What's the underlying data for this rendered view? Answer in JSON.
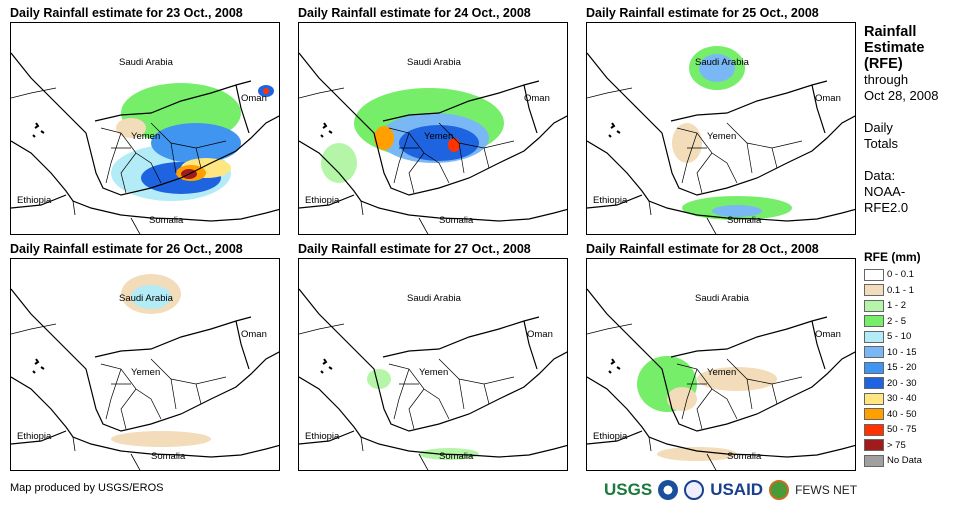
{
  "panels": [
    {
      "title": "Daily Rainfall estimate for 23 Oct., 2008"
    },
    {
      "title": "Daily Rainfall estimate for 24 Oct., 2008"
    },
    {
      "title": "Daily Rainfall estimate for 25 Oct., 2008"
    },
    {
      "title": "Daily Rainfall estimate for 26 Oct., 2008"
    },
    {
      "title": "Daily Rainfall estimate for 27 Oct., 2008"
    },
    {
      "title": "Daily Rainfall estimate for 28 Oct., 2008"
    }
  ],
  "labels": {
    "saudi": "Saudi Arabia",
    "yemen": "Yemen",
    "oman": "Oman",
    "ethiopia": "Ethiopia",
    "somalia": "Somalia"
  },
  "side": {
    "title1": "Rainfall",
    "title2": "Estimate",
    "title3": "(RFE)",
    "through": "through",
    "date": "Oct 28, 2008",
    "daily": "Daily",
    "totals": "Totals",
    "data": "Data:",
    "source1": "NOAA-",
    "source2": "RFE2.0"
  },
  "legend": {
    "title": "RFE (mm)",
    "items": [
      {
        "label": "0 - 0.1",
        "color": "#ffffff"
      },
      {
        "label": "0.1 - 1",
        "color": "#f2dcb9"
      },
      {
        "label": "1 - 2",
        "color": "#b5f5a8"
      },
      {
        "label": "2 - 5",
        "color": "#77ee6a"
      },
      {
        "label": "5 - 10",
        "color": "#b3ecf7"
      },
      {
        "label": "10 - 15",
        "color": "#7ab8f5"
      },
      {
        "label": "15 - 20",
        "color": "#3f95f0"
      },
      {
        "label": "20 - 30",
        "color": "#1e63e0"
      },
      {
        "label": "30 - 40",
        "color": "#ffe680"
      },
      {
        "label": "40 - 50",
        "color": "#ffa000"
      },
      {
        "label": "50 - 75",
        "color": "#ff3300"
      },
      {
        "label": "> 75",
        "color": "#a01c1c"
      },
      {
        "label": "No Data",
        "color": "#a0a0a0"
      }
    ]
  },
  "footer": "Map produced by USGS/EROS",
  "logos": {
    "usgs": "USGS",
    "usaid": "USAID",
    "fews": "FEWS NET"
  }
}
